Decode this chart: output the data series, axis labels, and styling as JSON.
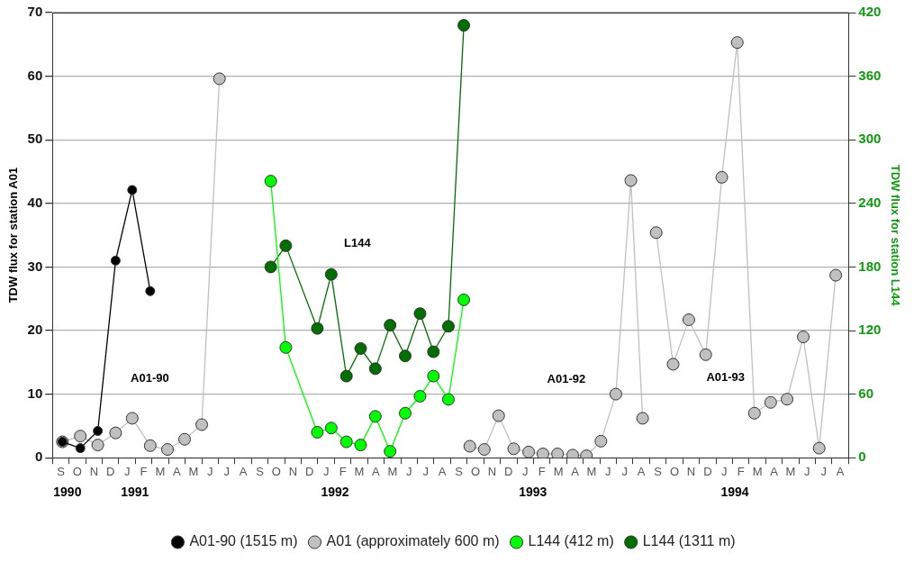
{
  "chart_data": {
    "type": "line",
    "ylabel": "TDW flux for station A01",
    "y2label": "TDW flux for station L144",
    "xlim": [
      "1990-09",
      "1994-09"
    ],
    "xticks": [
      {
        "value": "1990-09-28",
        "label": "1990"
      },
      {
        "value": "1991-01-31",
        "label": "1991"
      },
      {
        "value": "1992-02-02",
        "label": "1992"
      },
      {
        "value": "1993-01-31",
        "label": "1993"
      },
      {
        "value": "1994-02-05",
        "label": "1994"
      },
      {
        "value": "1990-09",
        "label": null
      },
      {
        "value": "1990-10",
        "label": null
      },
      {
        "value": "1990-11",
        "label": null
      },
      {
        "value": "1990-12",
        "label": null
      },
      {
        "value": "1991-01",
        "label": null
      },
      {
        "value": "1991-02",
        "label": null
      },
      {
        "value": "1991-03",
        "label": null
      },
      {
        "value": "1991-04",
        "label": null
      },
      {
        "value": "1991-05",
        "label": null
      },
      {
        "value": "1991-06",
        "label": null
      },
      {
        "value": "1991-07",
        "label": null
      },
      {
        "value": "1991-08",
        "label": null
      },
      {
        "value": "1991-09",
        "label": null
      },
      {
        "value": "1991-10",
        "label": null
      },
      {
        "value": "1991-11",
        "label": null
      },
      {
        "value": "1991-12",
        "label": null
      },
      {
        "value": "1992-01",
        "label": null
      },
      {
        "value": "1992-02",
        "label": null
      },
      {
        "value": "1992-03",
        "label": null
      },
      {
        "value": "1992-04",
        "label": null
      },
      {
        "value": "1992-05",
        "label": null
      },
      {
        "value": "1992-06",
        "label": null
      },
      {
        "value": "1992-07",
        "label": null
      },
      {
        "value": "1992-08",
        "label": null
      },
      {
        "value": "1992-09",
        "label": null
      },
      {
        "value": "1992-10",
        "label": null
      },
      {
        "value": "1992-11",
        "label": null
      },
      {
        "value": "1992-12",
        "label": null
      },
      {
        "value": "1993-01",
        "label": null
      },
      {
        "value": "1993-02",
        "label": null
      },
      {
        "value": "1993-03",
        "label": null
      },
      {
        "value": "1993-04",
        "label": null
      },
      {
        "value": "1993-05",
        "label": null
      },
      {
        "value": "1993-06",
        "label": null
      },
      {
        "value": "1993-07",
        "label": null
      },
      {
        "value": "1993-08",
        "label": null
      },
      {
        "value": "1993-09",
        "label": null
      },
      {
        "value": "1993-10",
        "label": null
      },
      {
        "value": "1993-11",
        "label": null
      },
      {
        "value": "1993-12",
        "label": null
      },
      {
        "value": "1994-01",
        "label": null
      },
      {
        "value": "1994-02",
        "label": null
      },
      {
        "value": "1994-03",
        "label": null
      },
      {
        "value": "1994-04",
        "label": null
      },
      {
        "value": "1994-05",
        "label": null
      },
      {
        "value": "1994-06",
        "label": null
      },
      {
        "value": "1994-07",
        "label": null
      },
      {
        "value": "1994-08",
        "label": null
      },
      {
        "value": "1994-09",
        "label": null
      }
    ],
    "ylim": [
      0,
      70
    ],
    "yticks": [
      0,
      10,
      20,
      30,
      40,
      50,
      60,
      70
    ],
    "y2lim": [
      0,
      420
    ],
    "y2ticks": [
      0,
      60,
      120,
      180,
      240,
      300,
      360,
      420
    ],
    "grid": "y",
    "legend": "bottom",
    "marker": "circle",
    "line_style": "solid",
    "series": [
      {
        "name": "A01-90 (1515 m)",
        "color": "#000000",
        "x": [
          "1990-09-19",
          "1990-10-22",
          "1990-11-23",
          "1990-12-26",
          "1991-01-26",
          "1991-02-26"
        ],
        "values": [
          2.5,
          1.5,
          4.2,
          31.0,
          42.1,
          26.2
        ]
      },
      {
        "name": "A01 (approximately 600 m)",
        "color": "#c0c0c0",
        "x": [
          "1990-09-19",
          "1990-10-22",
          "1990-11-23",
          "1990-12-26",
          "1991-01-26",
          "1991-02-26",
          "1991-03-30",
          "1991-04-30",
          "1991-06-01",
          "1991-07-03",
          "1992-01-01",
          "1992-10-06",
          "1992-11-02",
          "1992-11-28",
          "1992-12-26",
          "1993-01-23",
          "1993-02-17",
          "1993-03-15",
          "1993-04-12",
          "1993-05-07",
          "1993-06-03",
          "1993-06-30",
          "1993-07-28",
          "1993-08-19",
          "1993-09-01",
          "1993-09-13",
          "1993-10-14",
          "1993-11-12",
          "1993-12-13",
          "1994-01-12",
          "1994-02-09",
          "1994-03-11",
          "1994-04-10",
          "1994-05-10",
          "1994-06-09",
          "1994-07-08",
          "1994-08-08"
        ],
        "values": [
          2.5,
          3.4,
          2.0,
          3.9,
          6.2,
          1.9,
          1.3,
          2.9,
          5.2,
          59.6,
          null,
          1.8,
          1.3,
          6.6,
          1.4,
          0.9,
          0.6,
          0.6,
          0.4,
          0.3,
          2.6,
          10.0,
          43.6,
          6.2,
          null,
          35.4,
          14.7,
          21.7,
          16.2,
          44.1,
          65.3,
          7.0,
          8.7,
          9.2,
          19.0,
          1.5,
          28.7
        ]
      },
      {
        "name": "L144 (412 m)",
        "color": "#00ff00",
        "axis": "y2",
        "x": [
          "1991-10-06",
          "1991-11-03",
          "1991-12-31",
          "1992-01-26",
          "1992-02-22",
          "1992-03-19",
          "1992-04-15",
          "1992-05-12",
          "1992-06-09",
          "1992-07-06",
          "1992-07-31",
          "1992-08-28",
          "1992-09-25"
        ],
        "values": [
          261,
          104,
          24,
          28,
          15,
          12,
          39,
          6,
          42,
          58,
          77,
          55,
          149
        ]
      },
      {
        "name": "L144 (1311 m)",
        "color": "#006e00",
        "axis": "y2",
        "x": [
          "1991-10-06",
          "1991-11-03",
          "1991-12-31",
          "1992-01-26",
          "1992-02-22",
          "1992-03-19",
          "1992-04-15",
          "1992-05-12",
          "1992-06-09",
          "1992-07-06",
          "1992-07-31",
          "1992-08-28",
          "1992-09-25"
        ],
        "values": [
          180,
          200,
          122,
          173,
          77,
          103,
          84,
          125,
          96,
          136,
          100,
          124,
          408
        ]
      }
    ],
    "annotations": [
      "A01-90",
      "L144",
      "A01-92",
      "A01-93",
      "S",
      "O",
      "N",
      "D",
      "J",
      "F",
      "M",
      "A",
      "M",
      "J",
      "J",
      "A",
      "S",
      "O",
      "N",
      "D",
      "J",
      "F",
      "M",
      "A",
      "M",
      "J",
      "J",
      "A",
      "S",
      "O",
      "N",
      "D",
      "J",
      "F",
      "M",
      "A",
      "M",
      "J",
      "J",
      "A",
      "S",
      "O",
      "N",
      "D",
      "J",
      "F",
      "M",
      "A",
      "M",
      "J",
      "J",
      "A"
    ]
  }
}
